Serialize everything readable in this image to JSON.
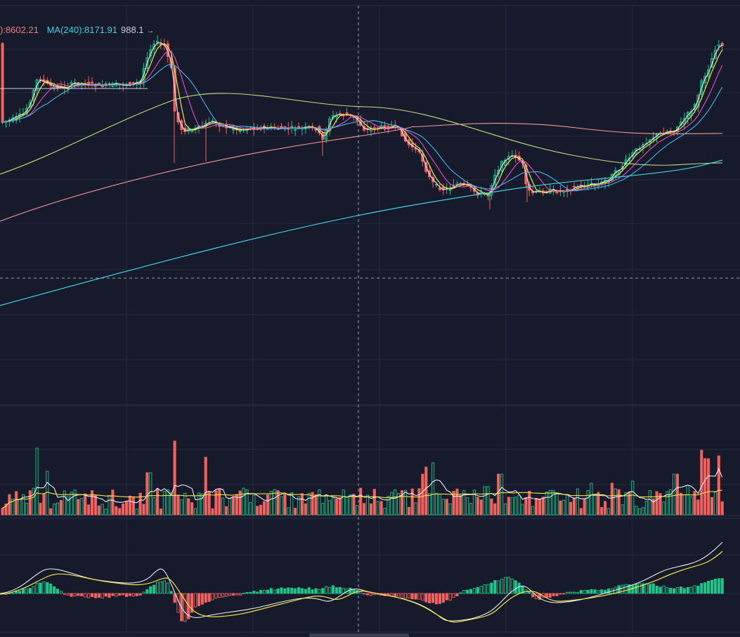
{
  "legend": {
    "ma_partial": {
      "text": "):8602.21",
      "color": "#f07b7b"
    },
    "ma240": {
      "text": "MA(240):8171.91",
      "color": "#3fd0e0"
    }
  },
  "price_marker": {
    "text": "988.1",
    "arrow": "→"
  },
  "colors": {
    "background": "#161a2a",
    "grid": "#242a3d",
    "up": "#21c48a",
    "down": "#f0635f",
    "ma5": "#e8ecf5",
    "ma10": "#f1e34a",
    "ma20": "#e44fc4",
    "ma30": "#46b4ee",
    "ma60": "#bde07a",
    "ma120": "#f39a97",
    "ma240": "#3fd0e0",
    "crosshair": "#9aa0b0"
  },
  "chart_data": {
    "type": "candlestick",
    "panes": [
      "price",
      "volume",
      "macd"
    ],
    "price_line_value": 988.1,
    "overlays": [
      "MA(240)"
    ],
    "grid": true
  }
}
